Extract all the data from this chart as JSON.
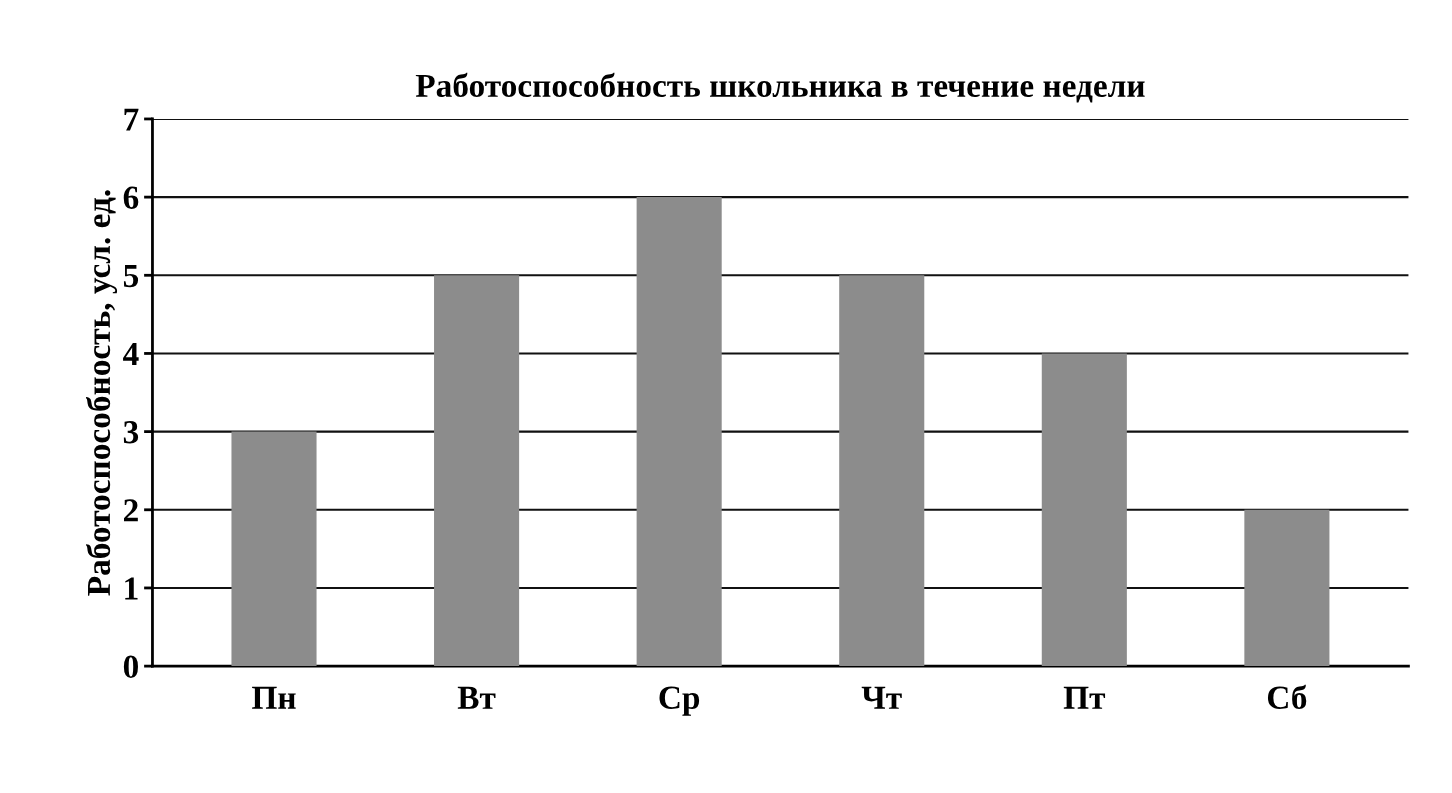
{
  "chart_data": {
    "type": "bar",
    "title": "Работоспособность школьника в течение недели",
    "ylabel": "Работоспособность, усл. ед.",
    "categories": [
      "Пн",
      "Вт",
      "Ср",
      "Чт",
      "Пт",
      "Сб"
    ],
    "values": [
      3,
      5,
      6,
      5,
      4,
      2
    ],
    "color": "#8c8c8c",
    "ylim": [
      0,
      7
    ],
    "yticks": [
      0,
      1,
      2,
      3,
      4,
      5,
      6,
      7
    ],
    "grid": "y"
  }
}
